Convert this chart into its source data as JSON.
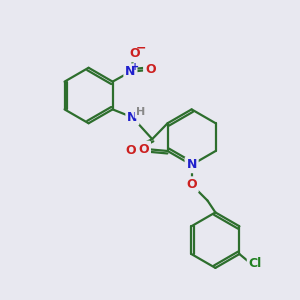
{
  "bg_color": "#e8e8f0",
  "bond_color": "#2d6e2d",
  "bond_width": 1.6,
  "atom_colors": {
    "N": "#2020cc",
    "O": "#cc2020",
    "Cl": "#208020",
    "H": "#888888",
    "C": "#2d6e2d"
  },
  "font_size": 9,
  "fig_size": [
    3.0,
    3.0
  ],
  "dpi": 100
}
